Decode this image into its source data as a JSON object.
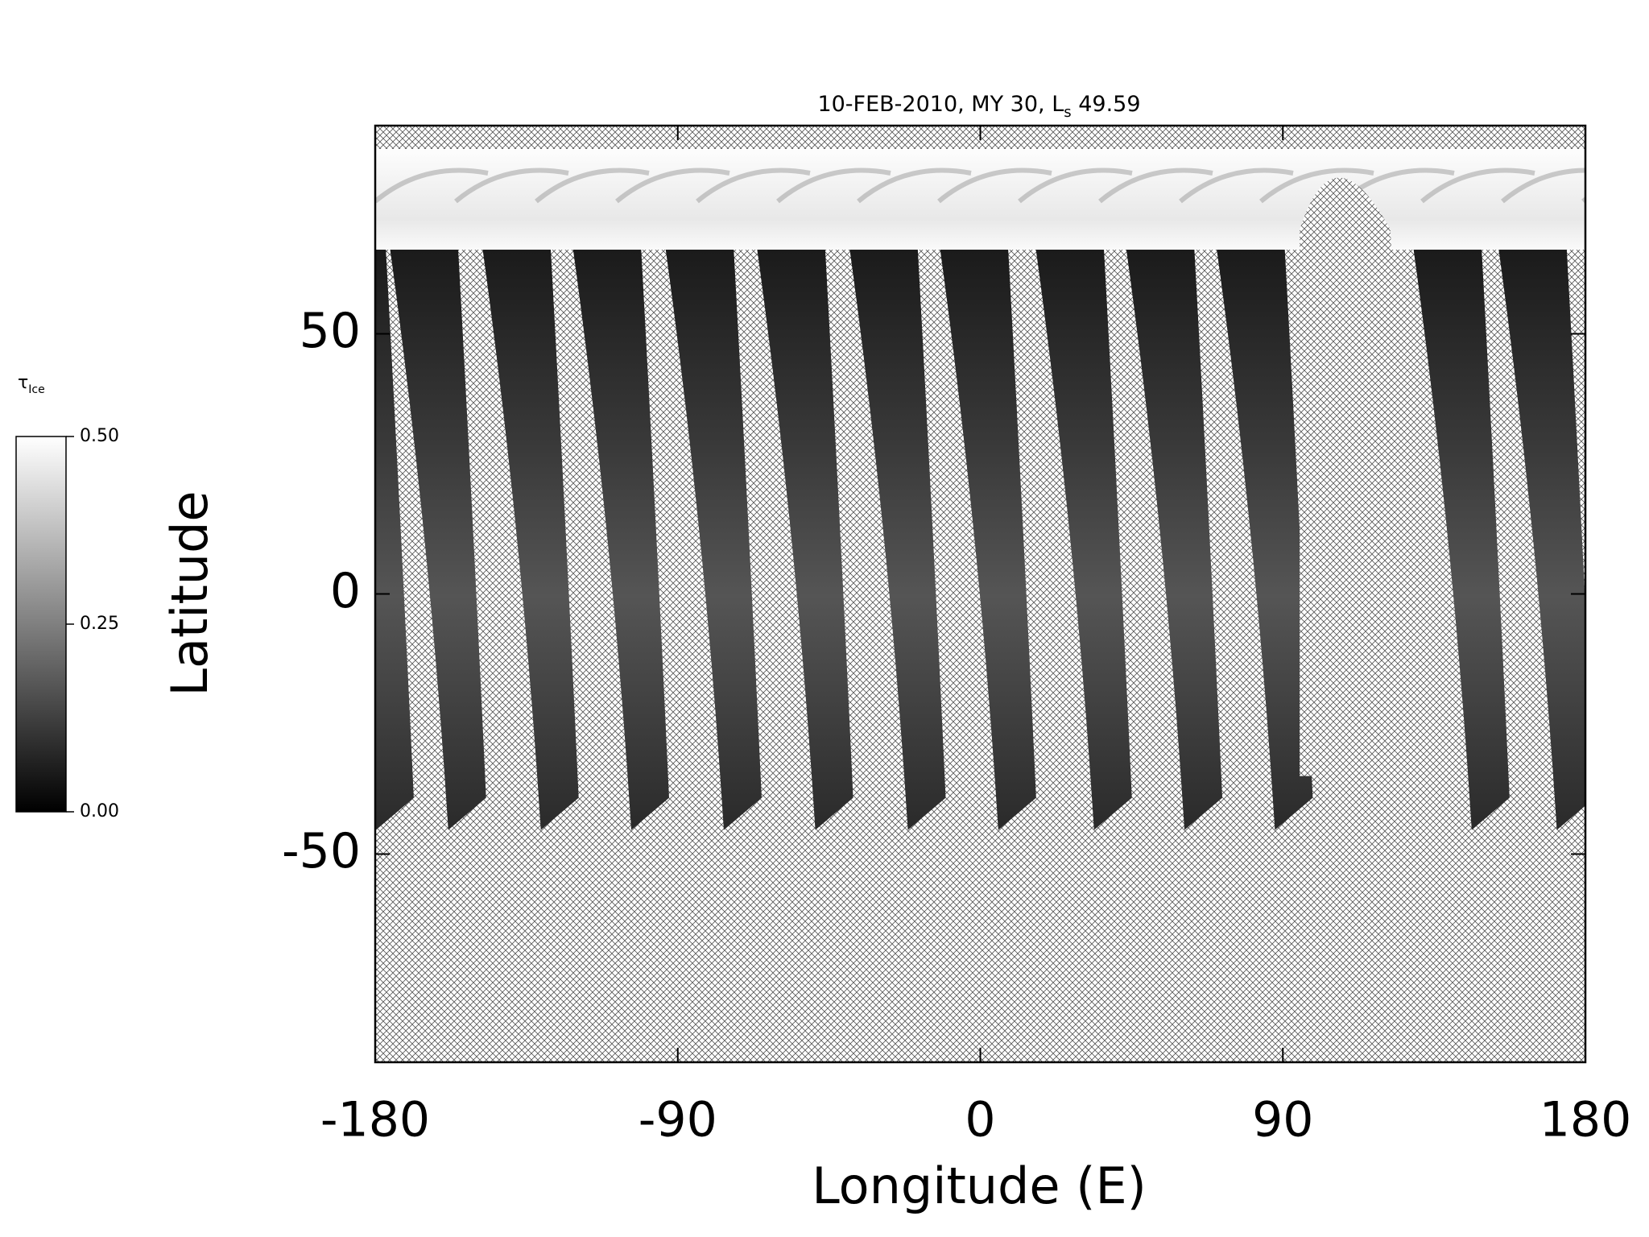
{
  "chart_data": {
    "type": "map",
    "title": [
      "10-FEB-2010, MY 30,",
      "L",
      "s",
      "49.59"
    ],
    "xlabel": "Longitude (E)",
    "ylabel": "Latitude",
    "xlim": [
      -180,
      180
    ],
    "xticks": [
      -180,
      -90,
      0,
      90,
      180
    ],
    "ylim": [
      -90,
      90
    ],
    "yticks": [
      -50,
      0,
      50
    ],
    "colorbar": {
      "label": [
        "τ",
        "Ice"
      ],
      "lim": [
        0,
        0.5
      ],
      "ticks": [
        {
          "value": 0,
          "label": "0.00"
        },
        {
          "value": 0.25,
          "label": "0.25"
        },
        {
          "value": 0.5,
          "label": "0.50"
        }
      ]
    }
  }
}
